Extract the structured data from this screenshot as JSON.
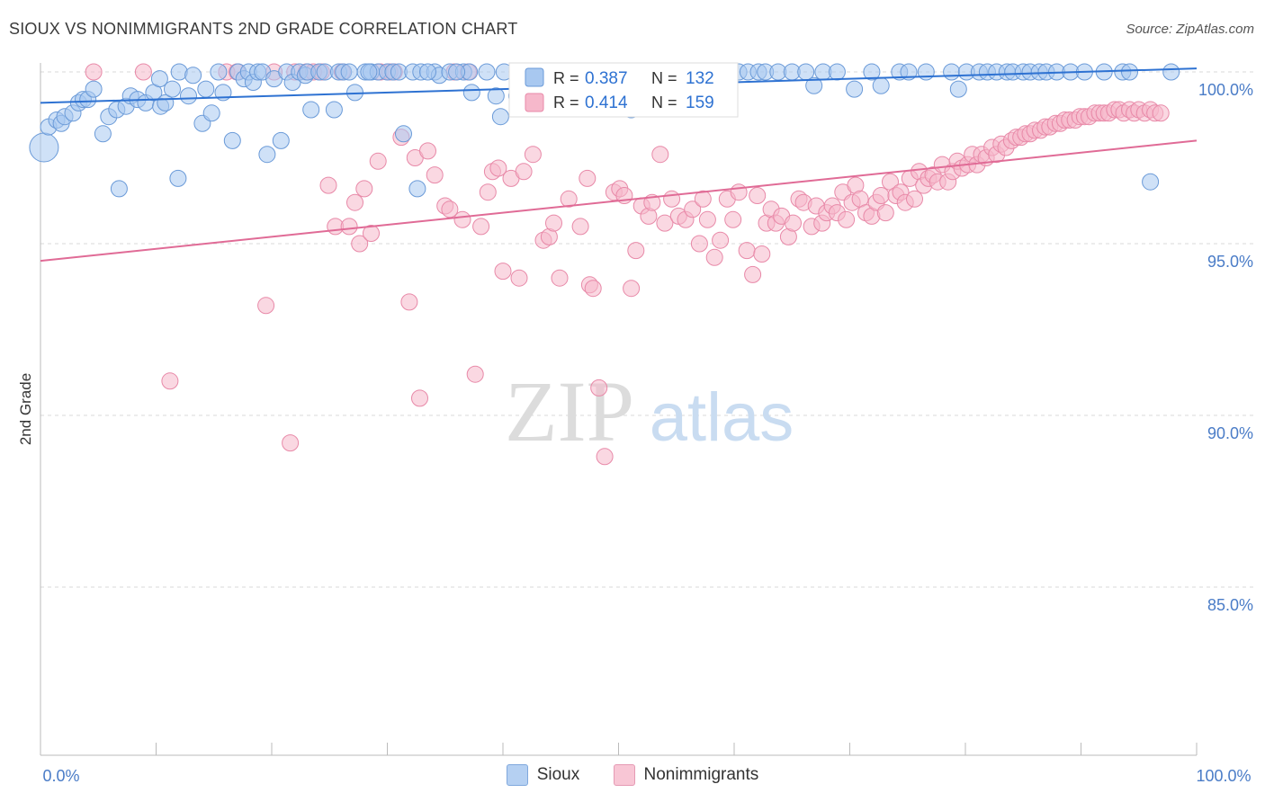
{
  "header": {
    "title": "SIOUX VS NONIMMIGRANTS 2ND GRADE CORRELATION CHART",
    "source": "Source: ZipAtlas.com"
  },
  "watermark": {
    "zip": "ZIP",
    "atlas": "atlas"
  },
  "colors": {
    "sioux_fill": "#a8c8f0",
    "sioux_stroke": "#6a9ad8",
    "sioux_line": "#2e72d2",
    "nonimm_fill": "#f6b8cb",
    "nonimm_stroke": "#e889a8",
    "nonimm_line": "#e06b96",
    "tick_label": "#4a7cc7",
    "grid": "#d8d8d8"
  },
  "stats_legend": {
    "rows": [
      {
        "r_label": "R = ",
        "r_value": "0.387",
        "n_label": "N = ",
        "n_value": "132"
      },
      {
        "r_label": "R = ",
        "r_value": "0.414",
        "n_label": "N = ",
        "n_value": "159"
      }
    ]
  },
  "chart_data": {
    "type": "scatter",
    "title": "SIOUX VS NONIMMIGRANTS 2ND GRADE CORRELATION CHART",
    "xlabel": "",
    "ylabel": "2nd Grade",
    "xlim": [
      0,
      100
    ],
    "ylim": [
      80.5,
      100.5
    ],
    "x_tick_labels": [
      "0.0%",
      "100.0%"
    ],
    "y_ticks": [
      85,
      90,
      95,
      100
    ],
    "y_tick_labels": [
      "85.0%",
      "90.0%",
      "95.0%",
      "100.0%"
    ],
    "grid": true,
    "legend_position": "bottom",
    "series": [
      {
        "name": "Sioux",
        "r": 0.387,
        "n": 132,
        "trendline": {
          "x": [
            0,
            100
          ],
          "y": [
            99.1,
            100.1
          ]
        },
        "points": [
          [
            0.3,
            97.8
          ],
          [
            0.7,
            98.4
          ],
          [
            1.4,
            98.6
          ],
          [
            1.8,
            98.5
          ],
          [
            2.1,
            98.7
          ],
          [
            2.8,
            98.8
          ],
          [
            3.3,
            99.1
          ],
          [
            3.7,
            99.2
          ],
          [
            4.1,
            99.2
          ],
          [
            4.6,
            99.5
          ],
          [
            5.4,
            98.2
          ],
          [
            5.9,
            98.7
          ],
          [
            6.6,
            98.9
          ],
          [
            6.8,
            96.6
          ],
          [
            7.4,
            99.0
          ],
          [
            7.8,
            99.3
          ],
          [
            8.4,
            99.2
          ],
          [
            9.1,
            99.1
          ],
          [
            9.8,
            99.4
          ],
          [
            10.3,
            99.8
          ],
          [
            10.4,
            99.0
          ],
          [
            10.8,
            99.1
          ],
          [
            11.4,
            99.5
          ],
          [
            11.9,
            96.9
          ],
          [
            12.0,
            100.0
          ],
          [
            12.8,
            99.3
          ],
          [
            13.2,
            99.9
          ],
          [
            14.0,
            98.5
          ],
          [
            14.3,
            99.5
          ],
          [
            14.8,
            98.8
          ],
          [
            15.4,
            100.0
          ],
          [
            15.8,
            99.4
          ],
          [
            16.6,
            98.0
          ],
          [
            17.1,
            100.0
          ],
          [
            17.6,
            99.8
          ],
          [
            18.0,
            100.0
          ],
          [
            18.4,
            99.7
          ],
          [
            18.8,
            100.0
          ],
          [
            19.2,
            100.0
          ],
          [
            19.6,
            97.6
          ],
          [
            20.2,
            99.8
          ],
          [
            20.8,
            98.0
          ],
          [
            21.3,
            100.0
          ],
          [
            21.8,
            99.7
          ],
          [
            22.4,
            100.0
          ],
          [
            22.9,
            99.9
          ],
          [
            23.1,
            100.0
          ],
          [
            23.4,
            98.9
          ],
          [
            24.1,
            100.0
          ],
          [
            24.6,
            100.0
          ],
          [
            25.4,
            98.9
          ],
          [
            25.8,
            100.0
          ],
          [
            26.2,
            100.0
          ],
          [
            26.7,
            100.0
          ],
          [
            27.2,
            99.4
          ],
          [
            28.1,
            100.0
          ],
          [
            28.6,
            100.0
          ],
          [
            29.2,
            100.0
          ],
          [
            30.0,
            100.0
          ],
          [
            30.5,
            100.0
          ],
          [
            31.0,
            100.0
          ],
          [
            31.4,
            98.2
          ],
          [
            32.2,
            100.0
          ],
          [
            32.6,
            96.6
          ],
          [
            32.9,
            100.0
          ],
          [
            34.1,
            100.0
          ],
          [
            34.5,
            99.9
          ],
          [
            35.4,
            100.0
          ],
          [
            36.6,
            100.0
          ],
          [
            37.1,
            100.0
          ],
          [
            37.3,
            99.4
          ],
          [
            38.6,
            100.0
          ],
          [
            39.4,
            99.3
          ],
          [
            39.8,
            98.7
          ],
          [
            40.1,
            100.0
          ],
          [
            41.2,
            99.3
          ],
          [
            42.1,
            100.0
          ],
          [
            43.3,
            100.0
          ],
          [
            44.7,
            100.0
          ],
          [
            46.0,
            100.0
          ],
          [
            47.2,
            100.0
          ],
          [
            48.5,
            100.0
          ],
          [
            49.4,
            100.0
          ],
          [
            50.3,
            100.0
          ],
          [
            51.1,
            98.9
          ],
          [
            51.9,
            100.0
          ],
          [
            52.4,
            100.0
          ],
          [
            53.3,
            100.0
          ],
          [
            54.3,
            100.0
          ],
          [
            54.9,
            99.3
          ],
          [
            55.6,
            100.0
          ],
          [
            57.3,
            100.0
          ],
          [
            58.4,
            100.0
          ],
          [
            59.6,
            100.0
          ],
          [
            60.4,
            100.0
          ],
          [
            61.2,
            100.0
          ],
          [
            62.1,
            100.0
          ],
          [
            62.7,
            100.0
          ],
          [
            63.8,
            100.0
          ],
          [
            65.0,
            100.0
          ],
          [
            66.2,
            100.0
          ],
          [
            66.9,
            99.6
          ],
          [
            67.7,
            100.0
          ],
          [
            68.9,
            100.0
          ],
          [
            70.4,
            99.5
          ],
          [
            71.9,
            100.0
          ],
          [
            72.7,
            99.6
          ],
          [
            74.3,
            100.0
          ],
          [
            75.1,
            100.0
          ],
          [
            76.6,
            100.0
          ],
          [
            78.8,
            100.0
          ],
          [
            79.4,
            99.5
          ],
          [
            80.1,
            100.0
          ],
          [
            81.2,
            100.0
          ],
          [
            81.9,
            100.0
          ],
          [
            82.7,
            100.0
          ],
          [
            83.6,
            100.0
          ],
          [
            84.1,
            100.0
          ],
          [
            85.0,
            100.0
          ],
          [
            85.6,
            100.0
          ],
          [
            86.4,
            100.0
          ],
          [
            87.0,
            100.0
          ],
          [
            87.9,
            100.0
          ],
          [
            89.1,
            100.0
          ],
          [
            90.3,
            100.0
          ],
          [
            92.0,
            100.0
          ],
          [
            93.6,
            100.0
          ],
          [
            94.2,
            100.0
          ],
          [
            96.0,
            96.8
          ],
          [
            97.8,
            100.0
          ],
          [
            28.4,
            100.0
          ],
          [
            33.5,
            100.0
          ],
          [
            36.0,
            100.0
          ],
          [
            47.8,
            100.0
          ]
        ]
      },
      {
        "name": "Nonimmigrants",
        "r": 0.414,
        "n": 159,
        "trendline": {
          "x": [
            0,
            100
          ],
          "y": [
            94.5,
            98.0
          ]
        },
        "points": [
          [
            4.6,
            100.0
          ],
          [
            8.9,
            100.0
          ],
          [
            11.2,
            91.0
          ],
          [
            16.1,
            100.0
          ],
          [
            17.0,
            100.0
          ],
          [
            19.5,
            93.2
          ],
          [
            20.2,
            100.0
          ],
          [
            21.6,
            89.2
          ],
          [
            22.0,
            100.0
          ],
          [
            23.0,
            100.0
          ],
          [
            23.6,
            100.0
          ],
          [
            24.3,
            100.0
          ],
          [
            24.9,
            96.7
          ],
          [
            25.5,
            95.5
          ],
          [
            26.1,
            100.0
          ],
          [
            26.7,
            95.5
          ],
          [
            27.2,
            96.2
          ],
          [
            27.6,
            95.0
          ],
          [
            28.0,
            96.6
          ],
          [
            28.6,
            95.3
          ],
          [
            29.2,
            97.4
          ],
          [
            29.4,
            100.0
          ],
          [
            30.2,
            100.0
          ],
          [
            30.6,
            100.0
          ],
          [
            31.2,
            98.1
          ],
          [
            31.9,
            93.3
          ],
          [
            32.4,
            97.5
          ],
          [
            32.8,
            90.5
          ],
          [
            33.5,
            97.7
          ],
          [
            34.1,
            97.0
          ],
          [
            35.0,
            96.1
          ],
          [
            35.4,
            96.0
          ],
          [
            35.8,
            100.0
          ],
          [
            36.5,
            95.7
          ],
          [
            37.0,
            100.0
          ],
          [
            37.6,
            91.2
          ],
          [
            38.1,
            95.5
          ],
          [
            38.7,
            96.5
          ],
          [
            39.1,
            97.1
          ],
          [
            39.6,
            97.2
          ],
          [
            40.0,
            94.2
          ],
          [
            40.7,
            96.9
          ],
          [
            41.4,
            94.0
          ],
          [
            41.8,
            97.1
          ],
          [
            42.6,
            97.6
          ],
          [
            43.2,
            99.0
          ],
          [
            43.5,
            95.1
          ],
          [
            44.0,
            95.2
          ],
          [
            44.4,
            95.6
          ],
          [
            44.9,
            94.0
          ],
          [
            45.7,
            96.3
          ],
          [
            46.2,
            100.0
          ],
          [
            46.7,
            95.5
          ],
          [
            47.3,
            96.9
          ],
          [
            47.5,
            93.8
          ],
          [
            47.8,
            93.7
          ],
          [
            48.3,
            90.8
          ],
          [
            48.8,
            88.8
          ],
          [
            49.6,
            96.5
          ],
          [
            50.1,
            96.6
          ],
          [
            50.5,
            96.4
          ],
          [
            51.1,
            93.7
          ],
          [
            51.5,
            94.8
          ],
          [
            52.0,
            96.1
          ],
          [
            52.6,
            95.8
          ],
          [
            52.9,
            96.2
          ],
          [
            53.6,
            97.6
          ],
          [
            54.0,
            95.6
          ],
          [
            54.6,
            96.3
          ],
          [
            55.2,
            95.8
          ],
          [
            55.8,
            95.7
          ],
          [
            56.4,
            96.0
          ],
          [
            57.0,
            95.0
          ],
          [
            57.3,
            96.3
          ],
          [
            57.7,
            95.7
          ],
          [
            58.3,
            94.6
          ],
          [
            58.8,
            95.1
          ],
          [
            59.4,
            96.3
          ],
          [
            59.9,
            95.7
          ],
          [
            60.4,
            96.5
          ],
          [
            61.1,
            94.8
          ],
          [
            61.6,
            94.1
          ],
          [
            62.0,
            96.4
          ],
          [
            62.4,
            94.7
          ],
          [
            62.8,
            95.6
          ],
          [
            63.2,
            96.0
          ],
          [
            63.6,
            95.6
          ],
          [
            64.1,
            95.8
          ],
          [
            64.7,
            95.2
          ],
          [
            65.1,
            95.6
          ],
          [
            65.6,
            96.3
          ],
          [
            66.0,
            96.2
          ],
          [
            66.7,
            95.5
          ],
          [
            67.1,
            96.1
          ],
          [
            67.6,
            95.6
          ],
          [
            68.0,
            95.9
          ],
          [
            68.5,
            96.1
          ],
          [
            68.9,
            95.9
          ],
          [
            69.4,
            96.5
          ],
          [
            69.7,
            95.7
          ],
          [
            70.2,
            96.2
          ],
          [
            70.5,
            96.7
          ],
          [
            70.9,
            96.3
          ],
          [
            71.4,
            95.9
          ],
          [
            71.9,
            95.8
          ],
          [
            72.3,
            96.2
          ],
          [
            72.7,
            96.4
          ],
          [
            73.1,
            95.9
          ],
          [
            73.5,
            96.8
          ],
          [
            74.0,
            96.4
          ],
          [
            74.4,
            96.5
          ],
          [
            74.8,
            96.2
          ],
          [
            75.2,
            96.9
          ],
          [
            75.6,
            96.3
          ],
          [
            76.0,
            97.1
          ],
          [
            76.4,
            96.7
          ],
          [
            76.8,
            96.9
          ],
          [
            77.2,
            97.0
          ],
          [
            77.6,
            96.8
          ],
          [
            78.0,
            97.3
          ],
          [
            78.5,
            96.8
          ],
          [
            78.9,
            97.1
          ],
          [
            79.3,
            97.4
          ],
          [
            79.7,
            97.2
          ],
          [
            80.2,
            97.3
          ],
          [
            80.6,
            97.6
          ],
          [
            81.0,
            97.3
          ],
          [
            81.4,
            97.6
          ],
          [
            81.8,
            97.5
          ],
          [
            82.3,
            97.8
          ],
          [
            82.7,
            97.6
          ],
          [
            83.1,
            97.9
          ],
          [
            83.5,
            97.8
          ],
          [
            84.0,
            98.0
          ],
          [
            84.4,
            98.1
          ],
          [
            84.8,
            98.1
          ],
          [
            85.2,
            98.2
          ],
          [
            85.6,
            98.2
          ],
          [
            86.0,
            98.3
          ],
          [
            86.5,
            98.3
          ],
          [
            86.9,
            98.4
          ],
          [
            87.3,
            98.4
          ],
          [
            87.8,
            98.5
          ],
          [
            88.2,
            98.5
          ],
          [
            88.6,
            98.6
          ],
          [
            89.0,
            98.6
          ],
          [
            89.5,
            98.6
          ],
          [
            89.9,
            98.7
          ],
          [
            90.3,
            98.7
          ],
          [
            90.7,
            98.7
          ],
          [
            91.2,
            98.8
          ],
          [
            91.6,
            98.8
          ],
          [
            92.0,
            98.8
          ],
          [
            92.4,
            98.8
          ],
          [
            92.9,
            98.9
          ],
          [
            93.3,
            98.9
          ],
          [
            93.7,
            98.8
          ],
          [
            94.2,
            98.9
          ],
          [
            94.6,
            98.8
          ],
          [
            95.0,
            98.9
          ],
          [
            95.5,
            98.8
          ],
          [
            96.0,
            98.9
          ],
          [
            96.4,
            98.8
          ],
          [
            96.9,
            98.8
          ]
        ]
      }
    ]
  },
  "bottom_legend": {
    "items": [
      {
        "label": "Sioux"
      },
      {
        "label": "Nonimmigrants"
      }
    ]
  }
}
